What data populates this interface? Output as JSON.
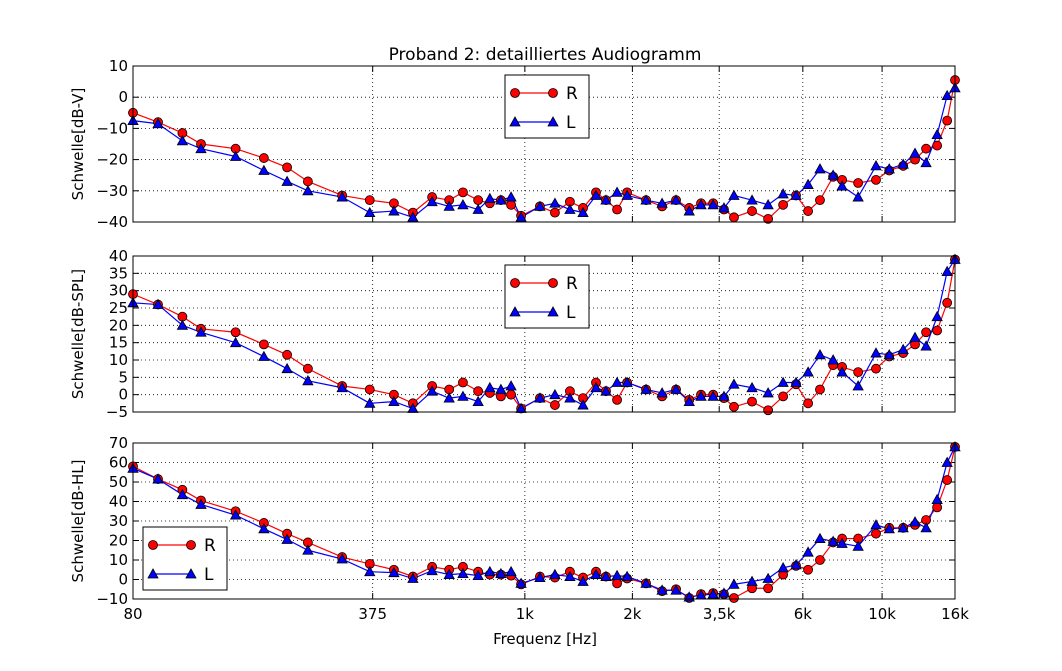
{
  "chart_data": [
    {
      "type": "line",
      "title": "Proband 2: detailliertes Audiogramm",
      "ylabel": "Schwelle[dB-V]",
      "xscale": "log",
      "grid": true,
      "legend": "upper center",
      "x": [
        80,
        94,
        110,
        124,
        155,
        186,
        216,
        247,
        308,
        368,
        430,
        486,
        550,
        614,
        671,
        740,
        798,
        857,
        915,
        976,
        1102,
        1214,
        1337,
        1455,
        1582,
        1687,
        1812,
        1933,
        2184,
        2422,
        2650,
        2885,
        3113,
        3366,
        3609,
        3849,
        4325,
        4797,
        5284,
        5743,
        6207,
        6701,
        7294,
        7728,
        8570,
        9616,
        10472,
        11457,
        12366,
        13280,
        14260,
        15210,
        16000
      ],
      "xlim": [
        80,
        16000
      ],
      "xticks": [
        80,
        375,
        1000,
        2000,
        3500,
        6000,
        10000,
        16000
      ],
      "ylim": [
        -40,
        10
      ],
      "yticks": [
        {
          "value": -40,
          "label": "−40"
        },
        {
          "value": -30,
          "label": "−30"
        },
        {
          "value": -20,
          "label": "−20"
        },
        {
          "value": -10,
          "label": "−10"
        },
        0,
        10
      ],
      "series": [
        {
          "name": "R",
          "color": "#ff0000",
          "marker": "circle",
          "values": [
            -5,
            -8,
            -11.5,
            -15,
            -16.5,
            -19.5,
            -22.5,
            -27,
            -31.5,
            -33,
            -34,
            -37,
            -32,
            -33,
            -30.5,
            -33,
            -34,
            -33,
            -34.5,
            -38,
            -35,
            -37,
            -33.5,
            -35.5,
            -30.5,
            -33,
            -36,
            -30.5,
            -33,
            -35,
            -33,
            -35.5,
            -34,
            -34,
            -36,
            -38.5,
            -36.5,
            -39,
            -34.5,
            -31.5,
            -36.5,
            -33,
            -25.5,
            -26.5,
            -27.5,
            -26.5,
            -23.5,
            -22,
            -20,
            -16.5,
            -15.5,
            -7.5,
            5.5
          ]
        },
        {
          "name": "L",
          "color": "#0000ff",
          "marker": "triangle",
          "values": [
            -7.5,
            -8.5,
            -14,
            -16.5,
            -19,
            -23.5,
            -27,
            -30,
            -32,
            -37,
            -36.5,
            -38.5,
            -33.5,
            -35,
            -34.5,
            -36,
            -32.5,
            -33,
            -32,
            -38.5,
            -35,
            -34,
            -36,
            -37,
            -31.5,
            -33,
            -30.5,
            -31.5,
            -33,
            -34,
            -33,
            -36.5,
            -34.5,
            -34.5,
            -35.5,
            -31.5,
            -33,
            -34.5,
            -31,
            -31.5,
            -28,
            -23,
            -25,
            -28.5,
            -32,
            -22,
            -23,
            -21.5,
            -18,
            -21,
            -12,
            0.5,
            3
          ]
        }
      ]
    },
    {
      "type": "line",
      "ylabel": "Schwelle[dB-SPL]",
      "xscale": "log",
      "grid": true,
      "legend": "upper center",
      "x": [
        80,
        94,
        110,
        124,
        155,
        186,
        216,
        247,
        308,
        368,
        430,
        486,
        550,
        614,
        671,
        740,
        798,
        857,
        915,
        976,
        1102,
        1214,
        1337,
        1455,
        1582,
        1687,
        1812,
        1933,
        2184,
        2422,
        2650,
        2885,
        3113,
        3366,
        3609,
        3849,
        4325,
        4797,
        5284,
        5743,
        6207,
        6701,
        7294,
        7728,
        8570,
        9616,
        10472,
        11457,
        12366,
        13280,
        14260,
        15210,
        16000
      ],
      "xlim": [
        80,
        16000
      ],
      "xticks": [
        80,
        375,
        1000,
        2000,
        3500,
        6000,
        10000,
        16000
      ],
      "ylim": [
        -5,
        40
      ],
      "yticks": [
        {
          "value": -5,
          "label": "−5"
        },
        0,
        5,
        10,
        15,
        20,
        25,
        30,
        35,
        40
      ],
      "series": [
        {
          "name": "R",
          "color": "#ff0000",
          "marker": "circle",
          "values": [
            29,
            26,
            22.5,
            19,
            18,
            14.5,
            11.5,
            7.5,
            2.5,
            1.5,
            0,
            -2.5,
            2.5,
            1.5,
            3.5,
            1,
            0.5,
            -0.5,
            0,
            -4,
            -1,
            -3,
            1,
            -1,
            3.5,
            1,
            -1.5,
            3.5,
            1.5,
            -0.5,
            1.5,
            -1.5,
            0,
            0,
            -1,
            -3.5,
            -2,
            -4.5,
            -0.5,
            3,
            -2.5,
            1.5,
            8.5,
            8,
            6.5,
            7.5,
            11,
            12,
            14.5,
            18,
            18.5,
            26.5,
            39
          ]
        },
        {
          "name": "L",
          "color": "#0000ff",
          "marker": "triangle",
          "values": [
            26.5,
            26,
            20,
            18,
            15,
            11,
            7.5,
            4,
            2,
            -2.5,
            -2,
            -4,
            1,
            -1,
            -0.5,
            -2,
            2,
            1.5,
            2.5,
            -4,
            -1,
            0,
            -1,
            -3,
            2,
            1,
            3.5,
            3.5,
            1.5,
            0.5,
            1.5,
            -2,
            -0.5,
            -0.5,
            -0.5,
            3,
            2,
            0.5,
            3.5,
            3.5,
            6.5,
            11.5,
            10,
            6.5,
            2.5,
            12,
            11.5,
            13,
            16.5,
            14,
            22.5,
            35.5,
            39
          ]
        }
      ]
    },
    {
      "type": "line",
      "ylabel": "Schwelle[dB-HL]",
      "xlabel": "Frequenz [Hz]",
      "xscale": "log",
      "grid": true,
      "legend": "lower left",
      "x": [
        80,
        94,
        110,
        124,
        155,
        186,
        216,
        247,
        308,
        368,
        430,
        486,
        550,
        614,
        671,
        740,
        798,
        857,
        915,
        976,
        1102,
        1214,
        1337,
        1455,
        1582,
        1687,
        1812,
        1933,
        2184,
        2422,
        2650,
        2885,
        3113,
        3366,
        3609,
        3849,
        4325,
        4797,
        5284,
        5743,
        6207,
        6701,
        7294,
        7728,
        8570,
        9616,
        10472,
        11457,
        12366,
        13280,
        14260,
        15210,
        16000
      ],
      "xlim": [
        80,
        16000
      ],
      "xticks": [
        80,
        375,
        {
          "value": 1000,
          "label": "1k"
        },
        {
          "value": 2000,
          "label": "2k"
        },
        {
          "value": 3500,
          "label": "3,5k"
        },
        {
          "value": 6000,
          "label": "6k"
        },
        {
          "value": 10000,
          "label": "10k"
        },
        {
          "value": 16000,
          "label": "16k"
        }
      ],
      "ylim": [
        -10,
        70
      ],
      "yticks": [
        {
          "value": -10,
          "label": "−10"
        },
        0,
        10,
        20,
        30,
        40,
        50,
        60,
        70
      ],
      "series": [
        {
          "name": "R",
          "color": "#ff0000",
          "marker": "circle",
          "values": [
            58,
            51.5,
            46,
            40.5,
            35,
            29,
            23.5,
            19,
            11.5,
            8,
            5,
            1.5,
            6.5,
            5,
            6.5,
            4,
            2.5,
            2.5,
            2,
            -2.5,
            1.5,
            1,
            4,
            1,
            4,
            1.5,
            -2,
            0.5,
            -2,
            -6,
            -5,
            -9.5,
            -7.5,
            -7,
            -7.5,
            -9.5,
            -4.5,
            -4.5,
            2.5,
            7,
            5,
            10,
            19,
            21,
            21,
            23.5,
            26.5,
            26.5,
            28,
            30.5,
            37,
            51,
            68
          ]
        },
        {
          "name": "L",
          "color": "#0000ff",
          "marker": "triangle",
          "values": [
            57,
            51.5,
            43.5,
            38.5,
            33,
            26,
            20.5,
            15,
            10.5,
            4,
            3.5,
            0.5,
            4.5,
            2.5,
            3,
            2,
            4,
            3,
            4,
            -2,
            1,
            2.5,
            1.5,
            -1,
            2.5,
            1.5,
            2,
            1.5,
            -2,
            -5.5,
            -5.5,
            -9,
            -8,
            -7.5,
            -7,
            -2.5,
            -1,
            0.5,
            6,
            7.5,
            14,
            21,
            19.5,
            18.5,
            17,
            28,
            26,
            26.5,
            29.5,
            26.5,
            41,
            60,
            68
          ]
        }
      ]
    }
  ]
}
